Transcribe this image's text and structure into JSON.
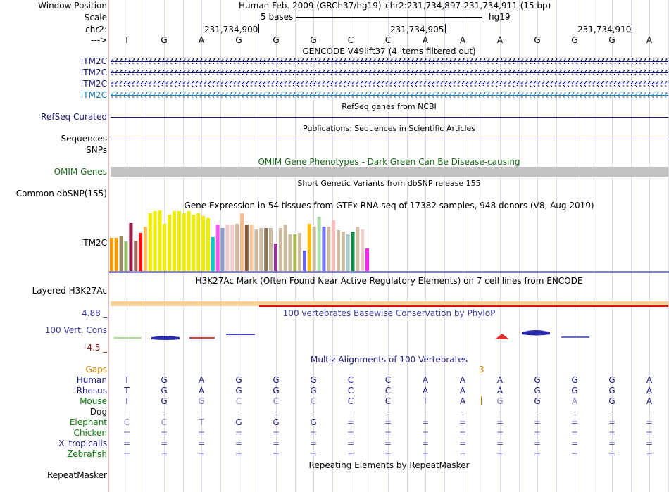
{
  "colors": {
    "label_navy": "#1a1a7a",
    "gencode_blue": "#0c0c78",
    "gencode_cyan": "#1a7ab8",
    "omim_green": "#1a6a1a",
    "gaps_orange": "#d08000",
    "conservation_blue": "#3a3a9a",
    "conservation_red": "#8a1a1a",
    "mouse_green": "#0a7a0a",
    "red_line": "#e01010",
    "h3k27ac_fill": "#f6d29a",
    "omim_bar": "#c2c2c2"
  },
  "header": {
    "window_position_label": "Window Position",
    "scale_label": "Scale",
    "chr_label": "chr2:",
    "arrow_label": "--->",
    "assembly_text": "Human Feb. 2009 (GRCh37/hg19)",
    "position_text": "chr2:231,734,897-231,734,911 (15 bp)",
    "scale_text": "5 bases",
    "scale_assembly": "hg19",
    "ticks": [
      "231,734,900",
      "231,734,905",
      "231,734,910"
    ],
    "bases": [
      "T",
      "G",
      "A",
      "G",
      "G",
      "G",
      "C",
      "C",
      "A",
      "A",
      "A",
      "G",
      "G",
      "G",
      "A"
    ]
  },
  "tracks": {
    "gencode_title": "GENCODE V49lift37 (4 items filtered out)",
    "gencode_items": [
      "ITM2C",
      "ITM2C",
      "ITM2C",
      "ITM2C"
    ],
    "refseq_label": "RefSeq Curated",
    "refseq_title": "RefSeq genes from NCBI",
    "sequences_label": "Sequences",
    "publications_title": "Publications: Sequences in Scientific Articles",
    "snps_label": "SNPs",
    "omim_title": "OMIM Gene Phenotypes - Dark Green Can Be Disease-causing",
    "omim_label": "OMIM Genes",
    "dbsnp_label": "Common dbSNP(155)",
    "dbsnp_title": "Short Genetic Variants from dbSNP release 155",
    "gtex_title": "Gene Expression in 54 tissues from GTEx RNA-seq of 17382 samples, 948 donors (V8, Aug 2019)",
    "gtex_label": "ITM2C",
    "h3k27ac_title": "H3K27Ac Mark (Often Found Near Active Regulatory Elements) on 7 cell lines from ENCODE",
    "h3k27ac_label": "Layered H3K27Ac",
    "cons_max": "4.88 _",
    "cons_min": "-4.5 _",
    "cons_title": "100 vertebrates Basewise Conservation by PhyloP",
    "cons_label": "100 Vert. Cons",
    "multiz_title": "Multiz Alignments of 100 Vertebrates",
    "gaps_label": "Gaps",
    "gaps_value": "3",
    "repeatmasker_title": "Repeating Elements by RepeatMasker",
    "repeatmasker_label": "RepeatMasker"
  },
  "gtex_bars": [
    {
      "color": "#ff9900",
      "value": 47
    },
    {
      "color": "#ff9900",
      "value": 47
    },
    {
      "color": "#9c8c64",
      "value": 49
    },
    {
      "color": "#94bc6c",
      "value": 42
    },
    {
      "color": "#9a1a4a",
      "value": 68
    },
    {
      "color": "#a06a58",
      "value": 43
    },
    {
      "color": "#ff1010",
      "value": 54
    },
    {
      "color": "#ffbb55",
      "value": 63
    },
    {
      "color": "#eeee00",
      "value": 82
    },
    {
      "color": "#eeee00",
      "value": 85
    },
    {
      "color": "#eeee00",
      "value": 87
    },
    {
      "color": "#eeee00",
      "value": 67
    },
    {
      "color": "#eeee00",
      "value": 80
    },
    {
      "color": "#eeee00",
      "value": 85
    },
    {
      "color": "#eeee00",
      "value": 85
    },
    {
      "color": "#eeee00",
      "value": 82
    },
    {
      "color": "#eeee00",
      "value": 85
    },
    {
      "color": "#eeee00",
      "value": 80
    },
    {
      "color": "#eeee00",
      "value": 82
    },
    {
      "color": "#eeee00",
      "value": 78
    },
    {
      "color": "#eeee00",
      "value": 75
    },
    {
      "color": "#00cccc",
      "value": 48
    },
    {
      "color": "#ff55ff",
      "value": 66
    },
    {
      "color": "#8899cc",
      "value": 61
    },
    {
      "color": "#eecccc",
      "value": 66
    },
    {
      "color": "#eecccc",
      "value": 66
    },
    {
      "color": "#ccbba0",
      "value": 67
    },
    {
      "color": "#ffbb88",
      "value": 82
    },
    {
      "color": "#8b5a3a",
      "value": 66
    },
    {
      "color": "#ffcc99",
      "value": 66
    },
    {
      "color": "#ccbba0",
      "value": 59
    },
    {
      "color": "#ccbba0",
      "value": 61
    },
    {
      "color": "#8b7355",
      "value": 61
    },
    {
      "color": "#ccbba0",
      "value": 61
    },
    {
      "color": "#993399",
      "value": 39
    },
    {
      "color": "#ccbba0",
      "value": 61
    },
    {
      "color": "#ccbba0",
      "value": 66
    },
    {
      "color": "#ccbba0",
      "value": 52
    },
    {
      "color": "#aabb55",
      "value": 52
    },
    {
      "color": "#ccbba0",
      "value": 54
    },
    {
      "color": "#6666ff",
      "value": 29
    },
    {
      "color": "#ffbb00",
      "value": 67
    },
    {
      "color": "#ccbba0",
      "value": 63
    },
    {
      "color": "#aaddaa",
      "value": 77
    },
    {
      "color": "#7777ff",
      "value": 63
    },
    {
      "color": "#ccbba0",
      "value": 63
    },
    {
      "color": "#ffbbbb",
      "value": 72
    },
    {
      "color": "#ccbba0",
      "value": 58
    },
    {
      "color": "#ccbba0",
      "value": 56
    },
    {
      "color": "#aacccc",
      "value": 52
    },
    {
      "color": "#118844",
      "value": 56
    },
    {
      "color": "#ccbba0",
      "value": 63
    },
    {
      "color": "#eecccc",
      "value": 59
    },
    {
      "color": "#ff22ff",
      "value": 32
    }
  ],
  "alignment": {
    "species": [
      {
        "name": "Human",
        "color": "#1a1a7a",
        "bases": [
          "T",
          "G",
          "A",
          "G",
          "G",
          "G",
          "C",
          "C",
          "A",
          "A",
          "A",
          "G",
          "G",
          "G",
          "A"
        ]
      },
      {
        "name": "Rhesus",
        "color": "#1a1a7a",
        "bases": [
          "T",
          "G",
          "A",
          "G",
          "G",
          "G",
          "C",
          "C",
          "A",
          "A",
          "A",
          "G",
          "G",
          "G",
          "A"
        ]
      },
      {
        "name": "Mouse",
        "color": "#0a7a0a",
        "bases": [
          "T",
          "G",
          "G",
          "C",
          "C",
          "C",
          "C",
          "C",
          "T",
          "A",
          "G",
          "G",
          "A",
          "G",
          "A"
        ]
      },
      {
        "name": "Dog",
        "color": "#1a1a1a",
        "bases": [
          "-",
          "-",
          "-",
          "-",
          "-",
          "-",
          "-",
          "-",
          "-",
          "-",
          "-",
          "-",
          "-",
          "-",
          "-"
        ]
      },
      {
        "name": "Elephant",
        "color": "#0a7a0a",
        "bases": [
          "C",
          "C",
          "T",
          "G",
          "G",
          "G",
          "=",
          "=",
          "=",
          "=",
          "=",
          "=",
          "=",
          "=",
          "="
        ]
      },
      {
        "name": "Chicken",
        "color": "#0a7a0a",
        "bases": [
          "=",
          "=",
          "=",
          "=",
          "=",
          "=",
          "=",
          "=",
          "=",
          "=",
          "=",
          "=",
          "=",
          "=",
          "="
        ]
      },
      {
        "name": "X_tropicalis",
        "color": "#1a1a7a",
        "bases": [
          "=",
          "=",
          "=",
          "=",
          "=",
          "=",
          "=",
          "=",
          "=",
          "=",
          "=",
          "=",
          "=",
          "=",
          "="
        ]
      },
      {
        "name": "Zebrafish",
        "color": "#0a7a0a",
        "bases": [
          "=",
          "=",
          "=",
          "=",
          "=",
          "=",
          "=",
          "=",
          "=",
          "=",
          "=",
          "=",
          "=",
          "=",
          "="
        ]
      }
    ]
  }
}
